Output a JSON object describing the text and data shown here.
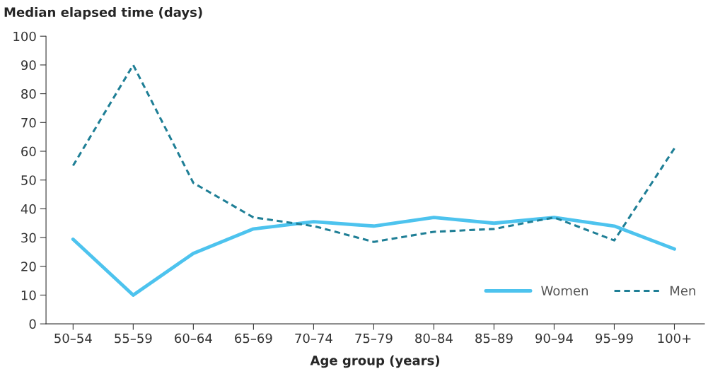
{
  "chart_data": {
    "type": "line",
    "ylabel": "Median elapsed time (days)",
    "xlabel": "Age group (years)",
    "categories": [
      "50–54",
      "55–59",
      "60–64",
      "65–69",
      "70–74",
      "75–79",
      "80–84",
      "85–89",
      "90–94",
      "95–99",
      "100+"
    ],
    "series": [
      {
        "name": "Women",
        "color": "#4dc3ee",
        "line_style": "solid",
        "values": [
          29.4,
          10,
          24.5,
          33,
          35.5,
          34,
          37,
          35,
          37,
          34,
          26
        ]
      },
      {
        "name": "Men",
        "color": "#1f7f96",
        "line_style": "dashed",
        "values": [
          55,
          90,
          49,
          37,
          34,
          28.5,
          32,
          33,
          37,
          29,
          61
        ]
      }
    ],
    "ylim": [
      0,
      100
    ],
    "yticks": [
      0,
      10,
      20,
      30,
      40,
      50,
      60,
      70,
      80,
      90,
      100
    ],
    "grid": false,
    "legend": "bottom right",
    "marker": "none"
  }
}
